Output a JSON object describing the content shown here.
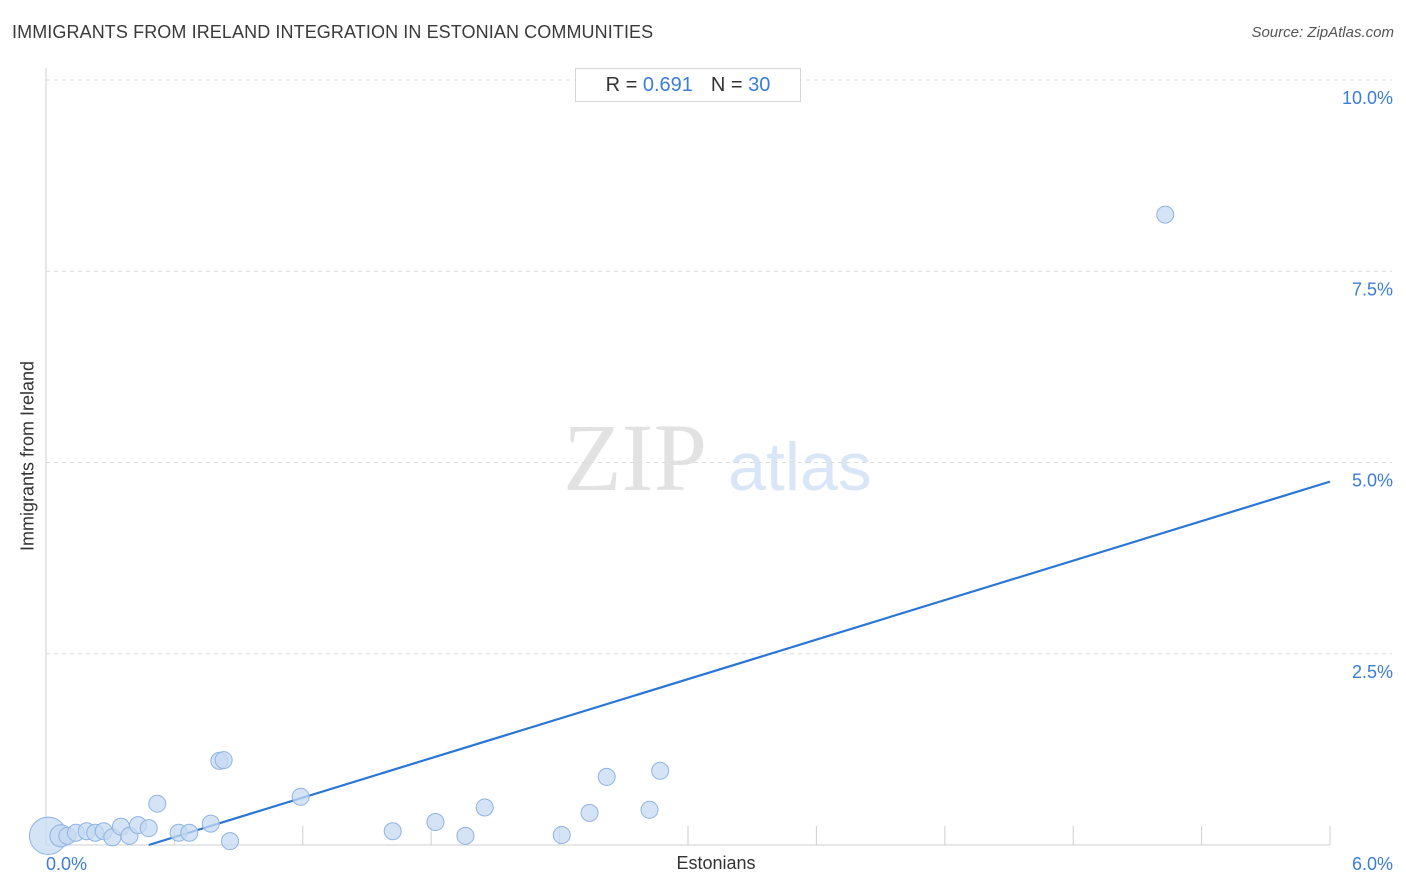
{
  "header": {
    "title": "IMMIGRANTS FROM IRELAND INTEGRATION IN ESTONIAN COMMUNITIES",
    "source": "Source: ZipAtlas.com"
  },
  "stats": {
    "r_label": "R =",
    "r_value": "0.691",
    "n_label": "N =",
    "n_value": "30"
  },
  "watermark": {
    "zip": "ZIP",
    "atlas": "atlas"
  },
  "colors": {
    "accent": "#3b7dd8",
    "point_fill": "#c5d9f2",
    "point_stroke": "#8fb3e3",
    "trend": "#2b76d4",
    "grid": "#dcdcdc"
  },
  "chart_data": {
    "type": "scatter",
    "xlabel": "Estonians",
    "ylabel": "Immigrants from Ireland",
    "xlim": [
      0,
      6
    ],
    "ylim": [
      0,
      10
    ],
    "x_tick_labels": [
      {
        "value": 0,
        "label": "0.0%"
      },
      {
        "value": 6,
        "label": "6.0%"
      }
    ],
    "y_tick_labels": [
      {
        "value": 2.5,
        "label": "2.5%"
      },
      {
        "value": 5,
        "label": "5.0%"
      },
      {
        "value": 7.5,
        "label": "7.5%"
      },
      {
        "value": 10,
        "label": "10.0%"
      }
    ],
    "grid": "horizontal-dashed",
    "trendline": {
      "x": [
        0.48,
        6.0
      ],
      "y": [
        0.0,
        4.75
      ]
    },
    "points": [
      {
        "x": 0.01,
        "y": 0.12,
        "size": 2.2
      },
      {
        "x": 0.07,
        "y": 0.12,
        "size": 1.3
      },
      {
        "x": 0.1,
        "y": 0.12,
        "size": 1.0
      },
      {
        "x": 0.14,
        "y": 0.16,
        "size": 1.0
      },
      {
        "x": 0.19,
        "y": 0.18,
        "size": 1.0
      },
      {
        "x": 0.23,
        "y": 0.16,
        "size": 1.0
      },
      {
        "x": 0.27,
        "y": 0.18,
        "size": 1.0
      },
      {
        "x": 0.31,
        "y": 0.1,
        "size": 1.0
      },
      {
        "x": 0.35,
        "y": 0.24,
        "size": 1.0
      },
      {
        "x": 0.39,
        "y": 0.12,
        "size": 1.0
      },
      {
        "x": 0.43,
        "y": 0.26,
        "size": 1.0
      },
      {
        "x": 0.48,
        "y": 0.22,
        "size": 1.0
      },
      {
        "x": 0.52,
        "y": 0.54,
        "size": 1.0
      },
      {
        "x": 0.62,
        "y": 0.16,
        "size": 1.0
      },
      {
        "x": 0.67,
        "y": 0.16,
        "size": 1.0
      },
      {
        "x": 0.77,
        "y": 0.28,
        "size": 1.0
      },
      {
        "x": 0.81,
        "y": 1.1,
        "size": 1.0
      },
      {
        "x": 0.83,
        "y": 1.11,
        "size": 1.0
      },
      {
        "x": 0.86,
        "y": 0.05,
        "size": 1.0
      },
      {
        "x": 1.19,
        "y": 0.63,
        "size": 1.0
      },
      {
        "x": 1.62,
        "y": 0.18,
        "size": 1.0
      },
      {
        "x": 1.82,
        "y": 0.3,
        "size": 1.0
      },
      {
        "x": 1.96,
        "y": 0.12,
        "size": 1.0
      },
      {
        "x": 2.05,
        "y": 0.49,
        "size": 1.0
      },
      {
        "x": 2.41,
        "y": 0.13,
        "size": 1.0
      },
      {
        "x": 2.54,
        "y": 0.42,
        "size": 1.0
      },
      {
        "x": 2.62,
        "y": 0.89,
        "size": 1.0
      },
      {
        "x": 2.82,
        "y": 0.46,
        "size": 1.0
      },
      {
        "x": 2.87,
        "y": 0.97,
        "size": 1.0
      },
      {
        "x": 5.23,
        "y": 8.24,
        "size": 1.0
      }
    ]
  }
}
